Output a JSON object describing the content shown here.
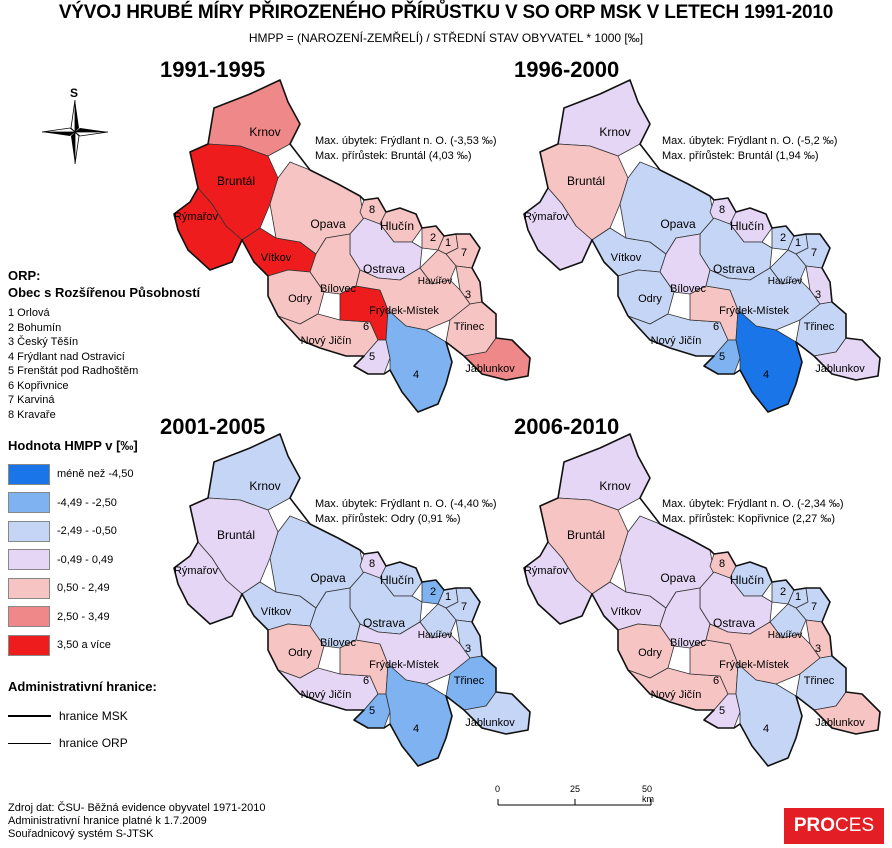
{
  "title": "VÝVOJ HRUBÉ MÍRY PŘIROZENÉHO PŘÍRŮSTKU V SO ORP MSK V LETECH 1991-2010",
  "subtitle": "HMPP = (NAROZENÍ-ZEMŘELÍ) / STŘEDNÍ STAV OBYVATEL * 1000 [‰]",
  "north_arrow_label": "S",
  "colors": {
    "c1": "#1a75e8",
    "c2": "#7eb2f0",
    "c3": "#c5d5f5",
    "c4": "#e6d6f5",
    "c5": "#f7c4c4",
    "c6": "#ef8888",
    "c7": "#ee1c1c"
  },
  "orp_legend": {
    "heading_1": "ORP:",
    "heading_2": "Obec s Rozšířenou Působností",
    "items": [
      "1 Orlová",
      "2 Bohumín",
      "3 Český Těšín",
      "4 Frýdlant nad Ostravicí",
      "5 Frenštát pod Radhoštěm",
      "6 Kopřivnice",
      "7 Karviná",
      "8 Kravaře"
    ]
  },
  "value_legend": {
    "heading": "Hodnota HMPP v [‰]",
    "classes": [
      {
        "label": "méně než -4,50",
        "color": "#1a75e8"
      },
      {
        "label": "-4,49 - -2,50",
        "color": "#7eb2f0"
      },
      {
        "label": "-2,49 - -0,50",
        "color": "#c5d5f5"
      },
      {
        "label": "-0,49 - 0,49",
        "color": "#e6d6f5"
      },
      {
        "label": "0,50 - 2,49",
        "color": "#f7c4c4"
      },
      {
        "label": "2,50 - 3,49",
        "color": "#ef8888"
      },
      {
        "label": "3,50 a více",
        "color": "#ee1c1c"
      }
    ]
  },
  "boundary_legend": {
    "heading": "Administrativní hranice:",
    "msk": "hranice MSK",
    "orp": "hranice ORP"
  },
  "scale_bar": {
    "ticks": [
      "0",
      "25",
      "50 km"
    ]
  },
  "source": {
    "line1": "Zdroj dat: ČSU- Běžná evidence obyvatel 1971-2010",
    "line2": "Administrativní hranice platné k 1.7.2009",
    "line3": "Souřadnicový systém S-JTSK"
  },
  "logo": {
    "bold": "PRO",
    "rest": "CES"
  },
  "district_names": {
    "krnov": "Krnov",
    "bruntal": "Bruntál",
    "rymarov": "Rýmařov",
    "vitkov": "Vítkov",
    "opava": "Opava",
    "hlucin": "Hlučín",
    "ostrava": "Ostrava",
    "havirov": "Havířov",
    "bilovec": "Bílovec",
    "odry": "Odry",
    "novy_jicin": "Nový Jičín",
    "frydek": "Frýdek-Místek",
    "trinec": "Třinec",
    "jablunkov": "Jablunkov",
    "n1": "1",
    "n2": "2",
    "n3": "3",
    "n4": "4",
    "n5": "5",
    "n6": "6",
    "n7": "7",
    "n8": "8"
  },
  "maps": [
    {
      "period": "1991-1995",
      "max_loss": "Max. úbytek: Frýdlant n. O. (-3,53 ‰)",
      "max_gain": "Max. přírůstek: Bruntál (4,03 ‰)",
      "classes": {
        "krnov": 6,
        "bruntal": 7,
        "rymarov": 7,
        "vitkov": 7,
        "opava": 5,
        "hlucin": 5,
        "n8": 5,
        "ostrava": 4,
        "n2": 5,
        "n1": 5,
        "n7": 5,
        "havirov": 5,
        "n3": 5,
        "bilovec": 5,
        "odry": 5,
        "novy_jicin": 5,
        "n6": 7,
        "n5": 4,
        "frydek": 5,
        "trinec": 5,
        "jablunkov": 6,
        "n4": 2
      }
    },
    {
      "period": "1996-2000",
      "max_loss": "Max. úbytek: Frýdlant n. O. (-5,2 ‰)",
      "max_gain": "Max. přírůstek: Bruntál (1,94 ‰)",
      "classes": {
        "krnov": 4,
        "bruntal": 5,
        "rymarov": 4,
        "vitkov": 3,
        "opava": 3,
        "hlucin": 4,
        "n8": 4,
        "ostrava": 3,
        "n2": 3,
        "n1": 3,
        "n7": 3,
        "havirov": 3,
        "n3": 4,
        "bilovec": 4,
        "odry": 3,
        "novy_jicin": 3,
        "n6": 5,
        "n5": 2,
        "frydek": 3,
        "trinec": 3,
        "jablunkov": 4,
        "n4": 1
      }
    },
    {
      "period": "2001-2005",
      "max_loss": "Max. úbytek: Frýdlant n. O. (-4,40 ‰)",
      "max_gain": "Max. přírůstek: Odry (0,91 ‰)",
      "classes": {
        "krnov": 3,
        "bruntal": 4,
        "rymarov": 4,
        "vitkov": 3,
        "opava": 3,
        "hlucin": 3,
        "n8": 4,
        "ostrava": 3,
        "n2": 2,
        "n1": 3,
        "n7": 3,
        "havirov": 3,
        "n3": 3,
        "bilovec": 3,
        "odry": 5,
        "novy_jicin": 4,
        "n6": 5,
        "n5": 2,
        "frydek": 4,
        "trinec": 2,
        "jablunkov": 3,
        "n4": 2
      }
    },
    {
      "period": "2006-2010",
      "max_loss": "Max. úbytek: Frýdlant n. O. (-2,34 ‰)",
      "max_gain": "Max. přírůstek: Kopřivnice (2,27 ‰)",
      "classes": {
        "krnov": 4,
        "bruntal": 5,
        "rymarov": 4,
        "vitkov": 4,
        "opava": 4,
        "hlucin": 3,
        "n8": 5,
        "ostrava": 4,
        "n2": 3,
        "n1": 3,
        "n7": 3,
        "havirov": 3,
        "n3": 5,
        "bilovec": 4,
        "odry": 5,
        "novy_jicin": 5,
        "n6": 5,
        "n5": 4,
        "frydek": 5,
        "trinec": 3,
        "jablunkov": 5,
        "n4": 3
      }
    }
  ]
}
